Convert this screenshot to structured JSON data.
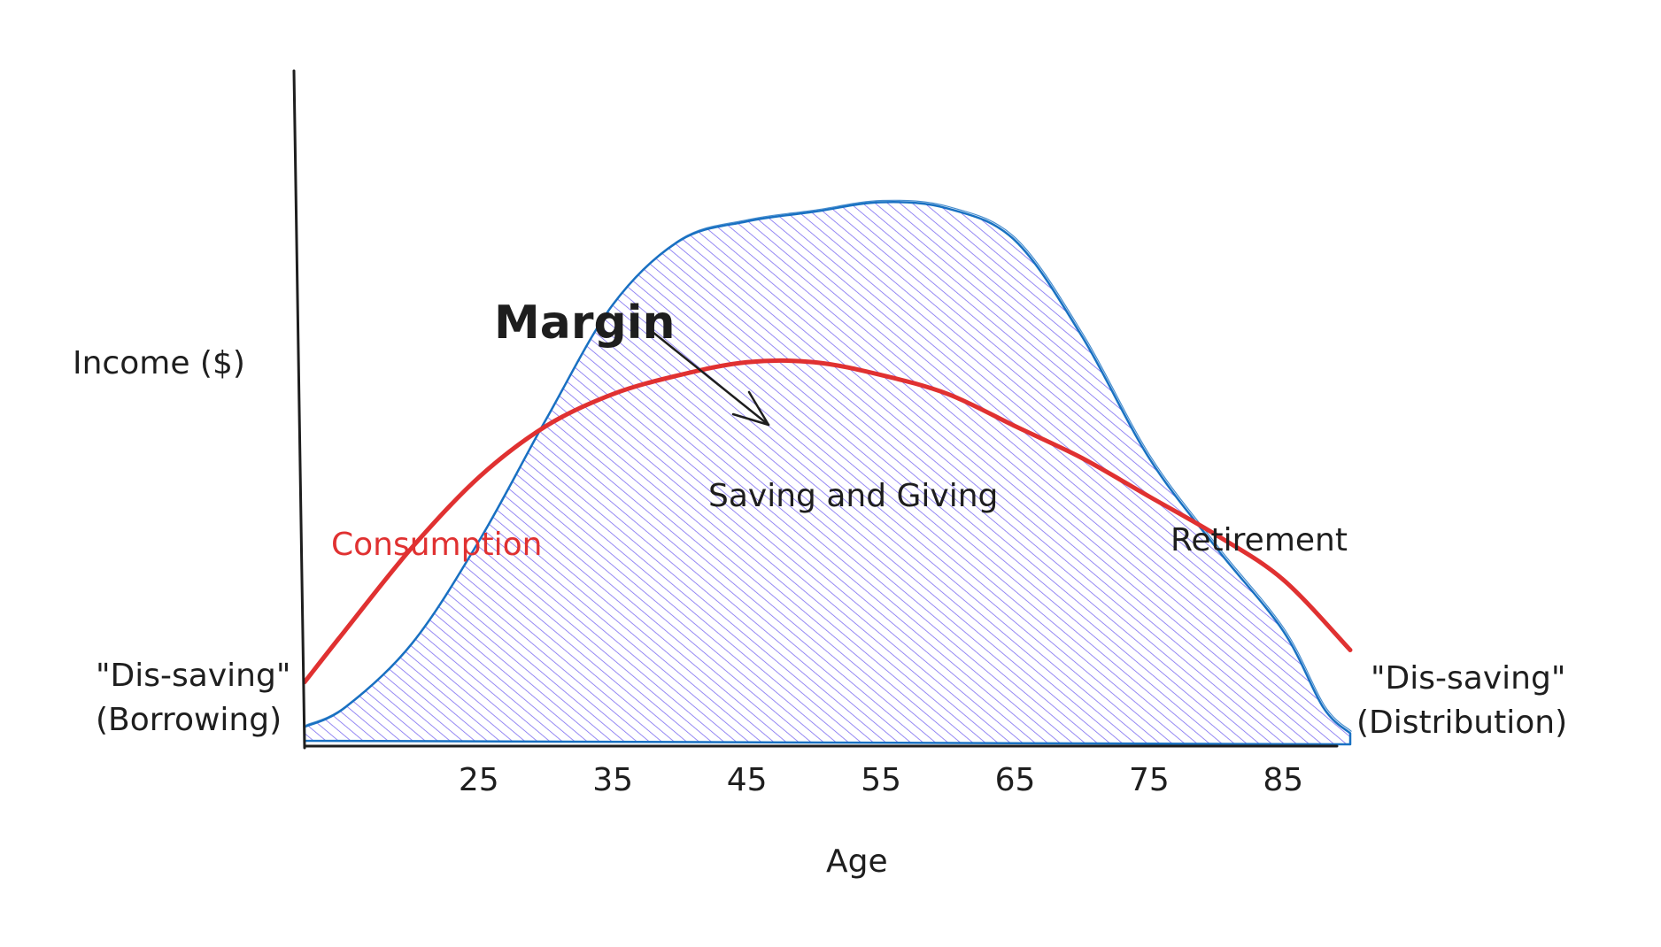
{
  "chart_data": {
    "type": "area",
    "title": "",
    "xlabel": "Age",
    "ylabel": "Income ($)",
    "xlim": [
      12,
      90
    ],
    "ylim": [
      0,
      10
    ],
    "x_ticks": [
      "25",
      "35",
      "45",
      "55",
      "65",
      "75",
      "85"
    ],
    "series": [
      {
        "kind": "area",
        "color": "#1971c2",
        "fill": "#7c6cf0",
        "x": [
          12,
          15,
          20,
          25,
          30,
          35,
          40,
          45,
          50,
          55,
          60,
          65,
          70,
          75,
          80,
          85,
          88,
          90
        ],
        "y": [
          0.3,
          0.6,
          1.6,
          3.2,
          5.1,
          6.9,
          7.9,
          8.2,
          8.35,
          8.5,
          8.4,
          7.9,
          6.4,
          4.5,
          3.1,
          1.8,
          0.6,
          0.2
        ]
      },
      {
        "name": "Consumption",
        "kind": "line",
        "color": "#e03131",
        "x": [
          12,
          15,
          20,
          25,
          30,
          35,
          40,
          45,
          50,
          55,
          60,
          65,
          70,
          75,
          80,
          85,
          90
        ],
        "y": [
          1.0,
          1.8,
          3.1,
          4.2,
          5.0,
          5.5,
          5.8,
          6.0,
          6.0,
          5.8,
          5.5,
          5.0,
          4.5,
          3.9,
          3.3,
          2.6,
          1.5
        ]
      }
    ],
    "annotations": {
      "margin": "Margin",
      "saving_giving": "Saving and Giving",
      "consumption": "Consumption",
      "retirement": "Retirement",
      "dis_saving_left_1": "\"Dis-saving\"",
      "dis_saving_left_2": "(Borrowing)",
      "dis_saving_right_1": "\"Dis-saving\"",
      "dis_saving_right_2": "(Distribution)"
    },
    "colors": {
      "area_stroke": "#1971c2",
      "area_hatch": "#7c6cf0",
      "consumption": "#e03131",
      "text": "#1e1e1e"
    }
  }
}
